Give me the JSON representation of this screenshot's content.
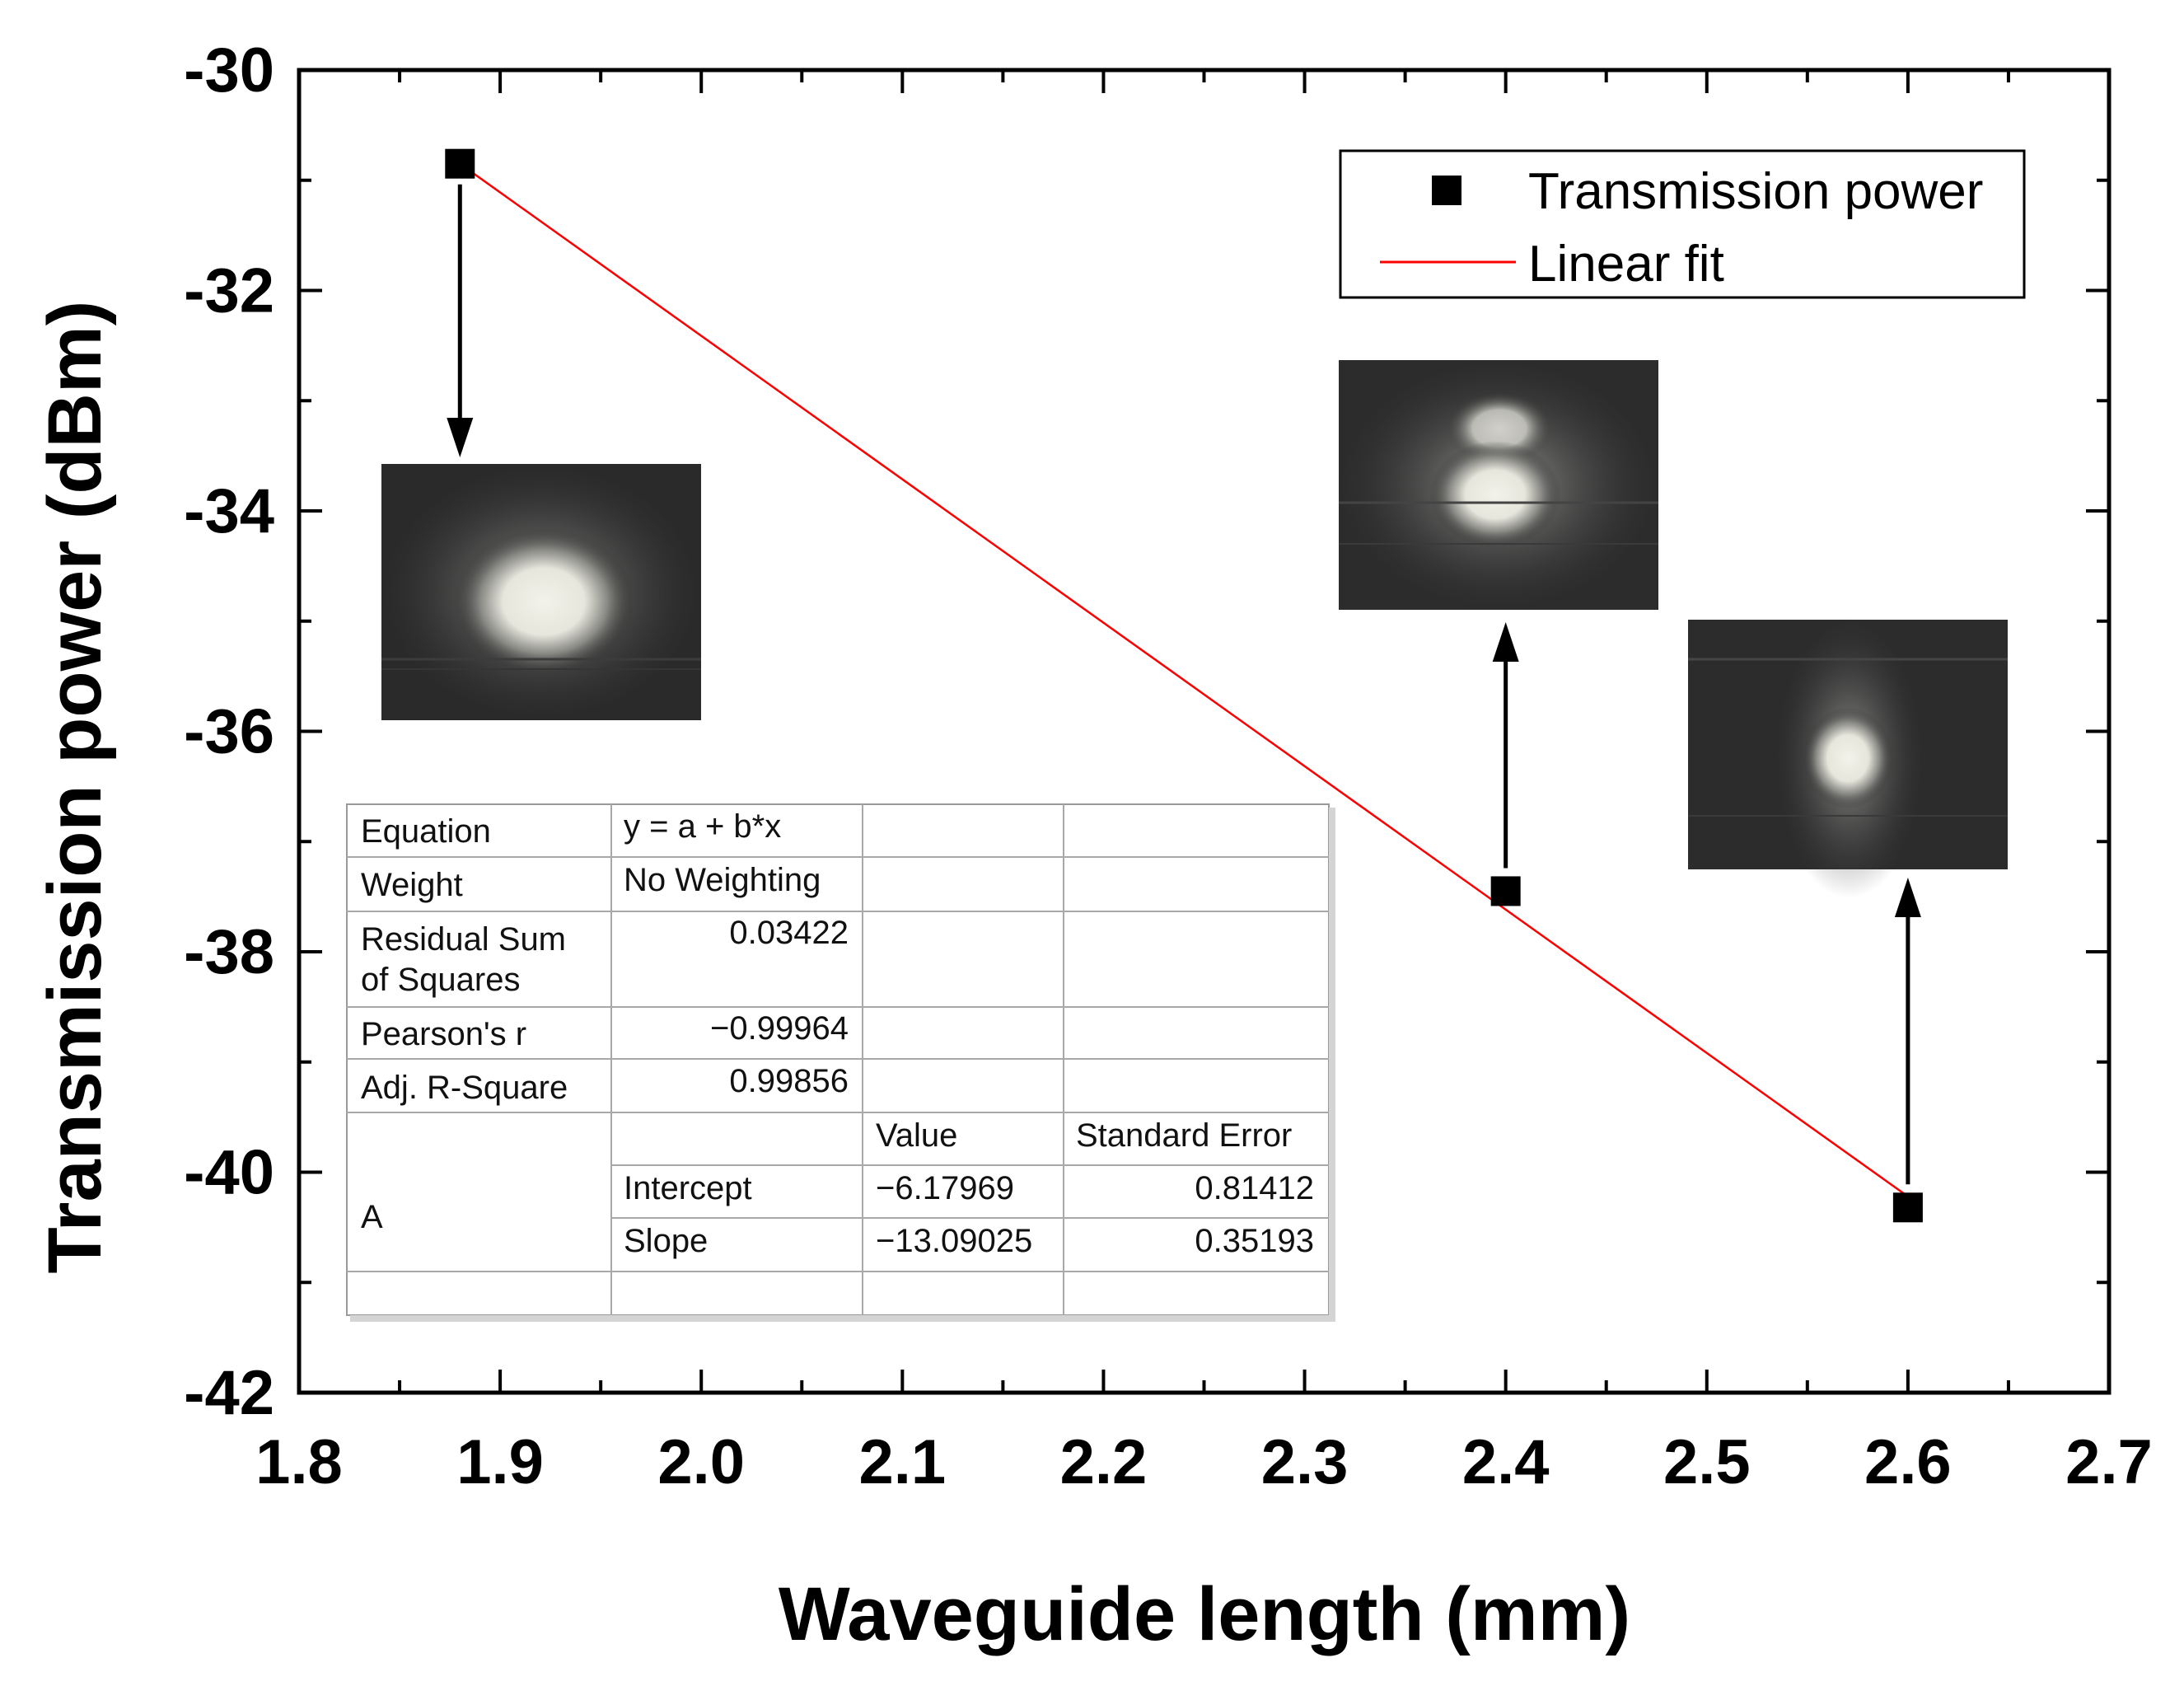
{
  "chart_data": {
    "type": "scatter",
    "title": "",
    "xlabel": "Waveguide length (mm)",
    "ylabel": "Transmission power (dBm)",
    "xlim": [
      1.8,
      2.7
    ],
    "ylim": [
      -42,
      -30
    ],
    "xticks": [
      1.8,
      1.9,
      2.0,
      2.1,
      2.2,
      2.3,
      2.4,
      2.5,
      2.6,
      2.7
    ],
    "xtick_labels": [
      "1.8",
      "1.9",
      "2.0",
      "2.1",
      "2.2",
      "2.3",
      "2.4",
      "2.5",
      "2.6",
      "2.7"
    ],
    "yticks": [
      -42,
      -40,
      -38,
      -36,
      -34,
      -32,
      -30
    ],
    "ytick_labels": [
      "-42",
      "-40",
      "-38",
      "-36",
      "-34",
      "-32",
      "-30"
    ],
    "series": [
      {
        "name": "Transmission power",
        "kind": "scatter",
        "marker": "square",
        "color": "#000000",
        "x": [
          1.88,
          2.4,
          2.6
        ],
        "y": [
          -30.85,
          -37.45,
          -40.32
        ]
      },
      {
        "name": "Linear fit",
        "kind": "line",
        "color": "#ff0000",
        "x": [
          1.88,
          2.6
        ],
        "y": [
          -30.85,
          -40.22
        ]
      }
    ],
    "legend": {
      "position": "top-right",
      "entries": [
        "Transmission power",
        "Linear fit"
      ]
    },
    "fit_table": {
      "rows": [
        {
          "label": "Equation",
          "value": "y = a + b*x"
        },
        {
          "label": "Weight",
          "value": "No Weighting"
        },
        {
          "label_lines": [
            "Residual Sum",
            "of Squares"
          ],
          "value": "0.03422"
        },
        {
          "label": "Pearson's r",
          "value": "−0.99964"
        },
        {
          "label": "Adj. R-Square",
          "value": "0.99856"
        }
      ],
      "headers": [
        "Value",
        "Standard Error"
      ],
      "group_label": "A",
      "params": [
        {
          "name": "Intercept",
          "value": "−6.17969",
          "error": "0.81412"
        },
        {
          "name": "Slope",
          "value": "−13.09025",
          "error": "0.35193"
        }
      ]
    },
    "insets": [
      {
        "name": "mode-image-1.88mm",
        "point_index": 0,
        "description": "single bright elliptical spot"
      },
      {
        "name": "mode-image-2.4mm",
        "point_index": 1,
        "description": "two stacked spots"
      },
      {
        "name": "mode-image-2.6mm",
        "point_index": 2,
        "description": "small vertical spot"
      }
    ]
  }
}
